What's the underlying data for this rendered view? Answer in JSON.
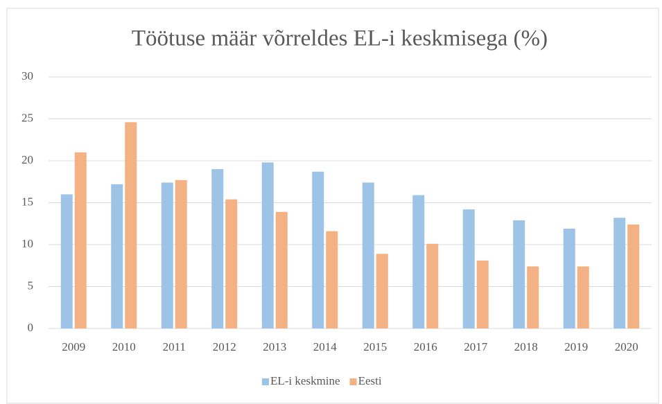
{
  "chart_data": {
    "type": "bar",
    "title": "Töötuse määr võrreldes EL-i keskmisega (%)",
    "categories": [
      "2009",
      "2010",
      "2011",
      "2012",
      "2013",
      "2014",
      "2015",
      "2016",
      "2017",
      "2018",
      "2019",
      "2020"
    ],
    "series": [
      {
        "name": "EL-i keskmine",
        "color": "#9dc3e6",
        "values": [
          16.0,
          17.2,
          17.4,
          19.0,
          19.8,
          18.7,
          17.4,
          15.9,
          14.2,
          12.9,
          11.9,
          13.2
        ]
      },
      {
        "name": "Eesti",
        "color": "#f4b183",
        "values": [
          21.0,
          24.6,
          17.7,
          15.4,
          13.9,
          11.6,
          8.9,
          10.1,
          8.1,
          7.4,
          7.4,
          12.4
        ]
      }
    ],
    "ylim": [
      0,
      30
    ],
    "yticks": [
      0,
      5,
      10,
      15,
      20,
      25,
      30
    ],
    "grid": true,
    "legend": "bottom"
  }
}
